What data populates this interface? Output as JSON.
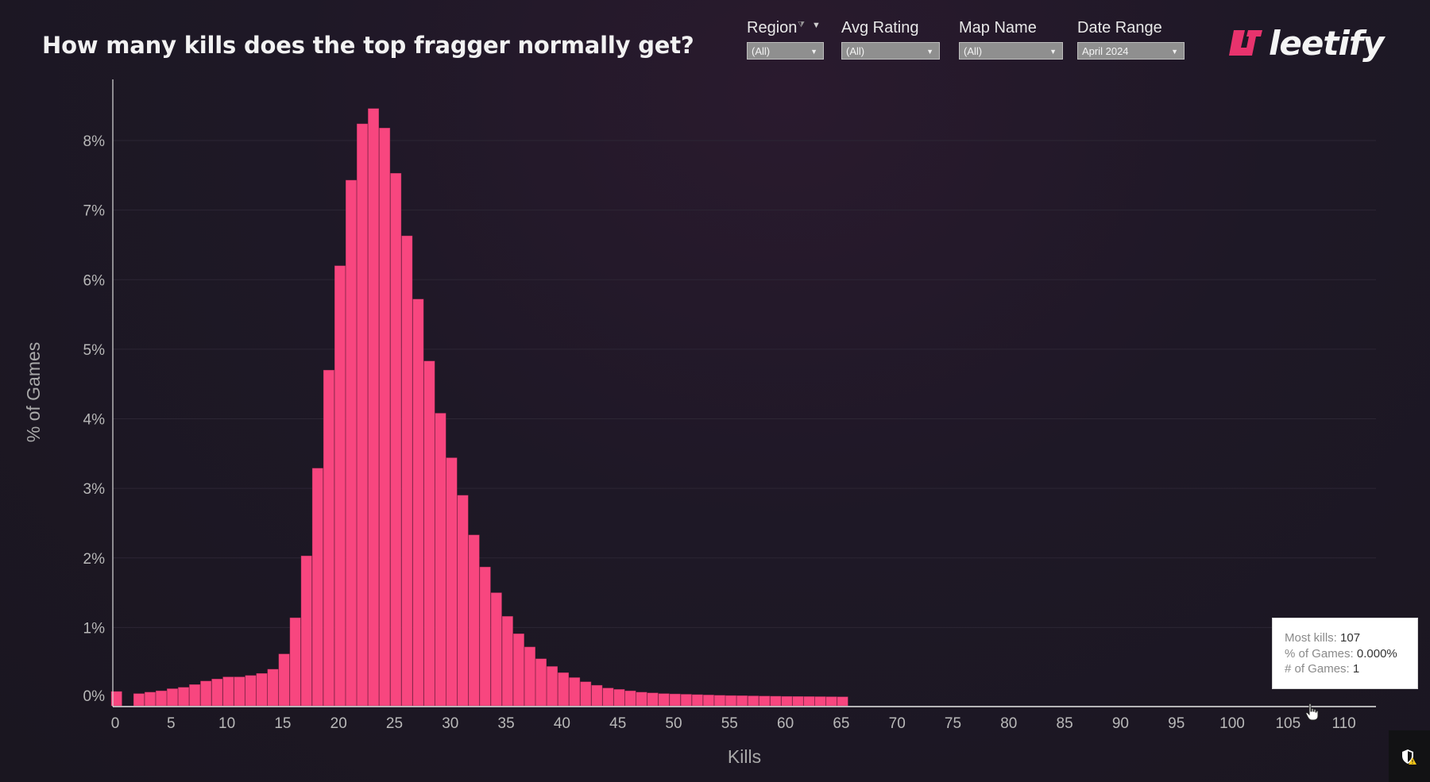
{
  "page": {
    "title": "How many kills does the top fragger normally get?"
  },
  "filters": [
    {
      "label": "Region",
      "value": "(All)"
    },
    {
      "label": "Avg Rating",
      "value": "(All)"
    },
    {
      "label": "Map Name",
      "value": "(All)"
    },
    {
      "label": "Date Range",
      "value": "April 2024"
    }
  ],
  "logo": {
    "text": "leetify",
    "color": "#e8336d"
  },
  "tooltip": {
    "rows": [
      {
        "label": "Most kills:",
        "value": "107"
      },
      {
        "label": "% of Games:",
        "value": "0.000%"
      },
      {
        "label": "# of Games:",
        "value": "1"
      }
    ]
  },
  "icons": {
    "shield": "shield-warning-icon",
    "cursor": "hand-pointer-icon",
    "filter": "filter-icon",
    "caret": "caret-down-icon"
  },
  "chart_data": {
    "type": "bar",
    "title": "How many kills does the top fragger normally get?",
    "xlabel": "Kills",
    "ylabel": "% of Games",
    "bar_color": "#f8467f",
    "xlim": [
      0,
      113
    ],
    "ylim": [
      0,
      8.6
    ],
    "x_ticks": [
      0,
      5,
      10,
      15,
      20,
      25,
      30,
      35,
      40,
      45,
      50,
      55,
      60,
      65,
      70,
      75,
      80,
      85,
      90,
      95,
      100,
      105,
      110
    ],
    "y_ticks": [
      0,
      1,
      2,
      3,
      4,
      5,
      6,
      7,
      8
    ],
    "y_tick_labels": [
      "0%",
      "1%",
      "2%",
      "3%",
      "4%",
      "5%",
      "6%",
      "7%",
      "8%"
    ],
    "grid": "horizontal",
    "x": [
      0,
      1,
      2,
      3,
      4,
      5,
      6,
      7,
      8,
      9,
      10,
      11,
      12,
      13,
      14,
      15,
      16,
      17,
      18,
      19,
      20,
      21,
      22,
      23,
      24,
      25,
      26,
      27,
      28,
      29,
      30,
      31,
      32,
      33,
      34,
      35,
      36,
      37,
      38,
      39,
      40,
      41,
      42,
      43,
      44,
      45,
      46,
      47,
      48,
      49,
      50,
      51,
      52,
      53,
      54,
      55,
      56,
      57,
      58,
      59,
      60,
      61,
      62,
      63,
      64,
      65
    ],
    "values": [
      0.08,
      0.0,
      0.05,
      0.07,
      0.09,
      0.12,
      0.14,
      0.18,
      0.23,
      0.26,
      0.29,
      0.29,
      0.31,
      0.34,
      0.4,
      0.62,
      1.14,
      2.03,
      3.29,
      4.7,
      6.2,
      7.43,
      8.24,
      8.46,
      8.18,
      7.53,
      6.63,
      5.72,
      4.83,
      4.08,
      3.44,
      2.9,
      2.33,
      1.87,
      1.5,
      1.16,
      0.91,
      0.72,
      0.55,
      0.44,
      0.35,
      0.28,
      0.22,
      0.17,
      0.13,
      0.11,
      0.09,
      0.07,
      0.06,
      0.05,
      0.045,
      0.04,
      0.035,
      0.03,
      0.025,
      0.022,
      0.02,
      0.017,
      0.015,
      0.012,
      0.01,
      0.008,
      0.007,
      0.006,
      0.005,
      0.004
    ]
  }
}
